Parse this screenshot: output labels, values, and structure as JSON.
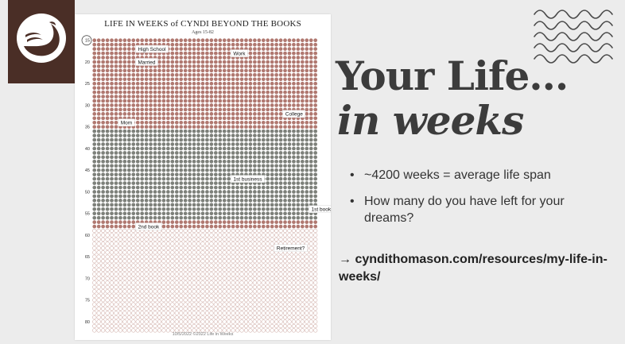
{
  "slide": {
    "title_line1": "Your Life…",
    "title_line2": "in weeks",
    "bullets": [
      "~4200 weeks = average life span",
      "How many do you have left for your dreams?"
    ],
    "link_text": "→ cyndithomason.com/resources/my-life-in-weeks/",
    "bullet_glyph": "•"
  },
  "logo": {
    "icon": "swan-icon",
    "background": "#4a2e26"
  },
  "decoration": {
    "icon": "wavy-lines-icon"
  },
  "chart": {
    "title": "LIFE IN WEEKS of CYNDI BEYOND THE BOOKS",
    "subtitle": "Ages 15-82",
    "footer": "10/5/2022 ©2022 Life in Weeks"
  },
  "chart_data": {
    "type": "table",
    "title": "LIFE IN WEEKS of CYNDI BEYOND THE BOOKS",
    "subtitle": "Ages 15-82",
    "columns": 52,
    "age_start": 15,
    "age_end": 82,
    "age_ticks": [
      15,
      20,
      25,
      30,
      35,
      40,
      45,
      50,
      55,
      60,
      65,
      70,
      75,
      80
    ],
    "periods": [
      {
        "from_age": 15,
        "to_age": 36,
        "color": "#b07870",
        "style": "filled"
      },
      {
        "from_age": 36,
        "to_age": 57,
        "color": "#7d807a",
        "style": "filled"
      },
      {
        "from_age": 57,
        "to_age": 59,
        "color": "#b07870",
        "style": "filled"
      },
      {
        "from_age": 59,
        "to_age": 83,
        "color": "#c89f98",
        "style": "outline"
      }
    ],
    "annotations": [
      {
        "label": "High School",
        "age": 17,
        "week": 10
      },
      {
        "label": "Work",
        "age": 18,
        "week": 32
      },
      {
        "label": "Married",
        "age": 20,
        "week": 10
      },
      {
        "label": "College",
        "age": 32,
        "week": 44
      },
      {
        "label": "Mom",
        "age": 34,
        "week": 6
      },
      {
        "label": "1st business",
        "age": 47,
        "week": 32
      },
      {
        "label": "1st book",
        "age": 54,
        "week": 50
      },
      {
        "label": "2nd book",
        "age": 58,
        "week": 10
      },
      {
        "label": "Retirement?",
        "age": 63,
        "week": 42
      }
    ]
  }
}
